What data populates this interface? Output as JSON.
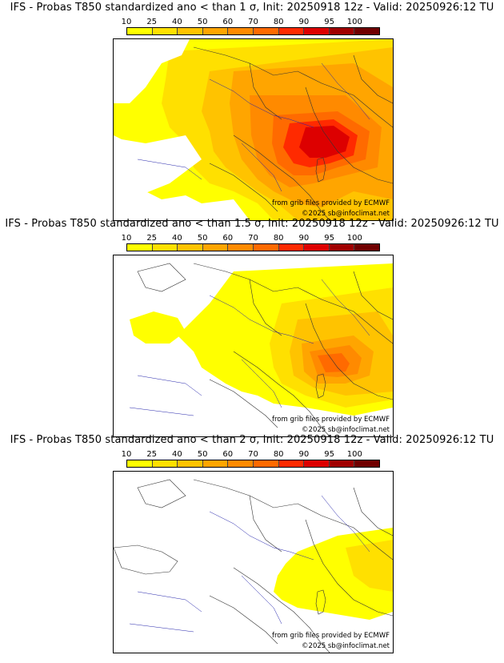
{
  "colorbar": {
    "ticks": [
      "10",
      "25",
      "40",
      "50",
      "60",
      "70",
      "80",
      "90",
      "95",
      "100"
    ],
    "colors": [
      "#ffff00",
      "#ffe000",
      "#ffc300",
      "#ffa500",
      "#ff8a00",
      "#ff6a00",
      "#ff2a00",
      "#dd0000",
      "#a00000",
      "#700000"
    ]
  },
  "panels": [
    {
      "title": "IFS - Probas T850  standardized ano < than 1 σ, Init: 20250918 12z - Valid: 20250926:12 TU",
      "source": "from grib files provided by ECMWF",
      "copyright": "©2025 sb@infoclimat.net"
    },
    {
      "title": "IFS - Probas T850  standardized ano < than 1.5 σ, Init: 20250918 12z - Valid: 20250926:12 TU",
      "source": "from grib files provided by ECMWF",
      "copyright": "©2025 sb@infoclimat.net"
    },
    {
      "title": "IFS - Probas T850  standardized ano < than 2 σ, Init: 20250918 12z - Valid: 20250926:12 TU",
      "source": "from grib files provided by ECMWF",
      "copyright": "©2025 sb@infoclimat.net"
    }
  ]
}
